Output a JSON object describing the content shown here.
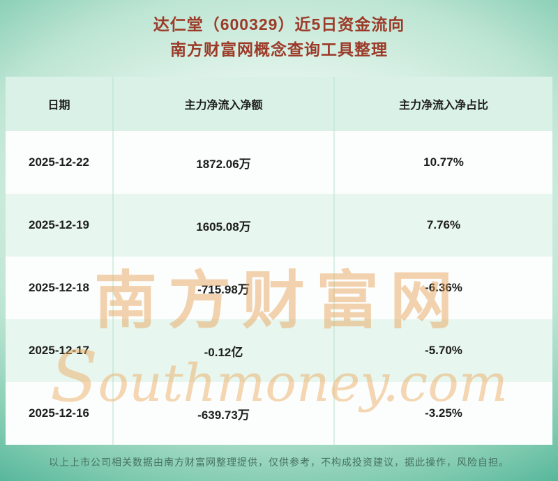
{
  "header": {
    "title": "达仁堂（600329）近5日资金流向",
    "subtitle": "南方财富网概念查询工具整理"
  },
  "chart_data": {
    "type": "table",
    "title": "达仁堂（600329）近5日资金流向",
    "subtitle": "南方财富网概念查询工具整理",
    "columns": [
      "日期",
      "主力净流入净额",
      "主力净流入净占比"
    ],
    "rows": [
      [
        "2025-12-22",
        "1872.06万",
        "10.77%"
      ],
      [
        "2025-12-19",
        "1605.08万",
        "7.76%"
      ],
      [
        "2025-12-18",
        "-715.98万",
        "-6.36%"
      ],
      [
        "2025-12-17",
        "-0.12亿",
        "-5.70%"
      ],
      [
        "2025-12-16",
        "-639.73万",
        "-3.25%"
      ]
    ]
  },
  "watermark": {
    "cn": "南方财富网",
    "en": "Southmoney.com"
  },
  "footer": {
    "disclaimer": "以上上市公司相关数据由南方财富网整理提供，仅供参考，不构成投资建议，据此操作，风险自担。"
  },
  "colors": {
    "title_text": "#9c3a28",
    "background_teal": "#2b997e",
    "header_row_bg": "#d9f1e6",
    "even_row_bg": "#e7f6ee",
    "watermark_orange": "#e79d4e"
  }
}
